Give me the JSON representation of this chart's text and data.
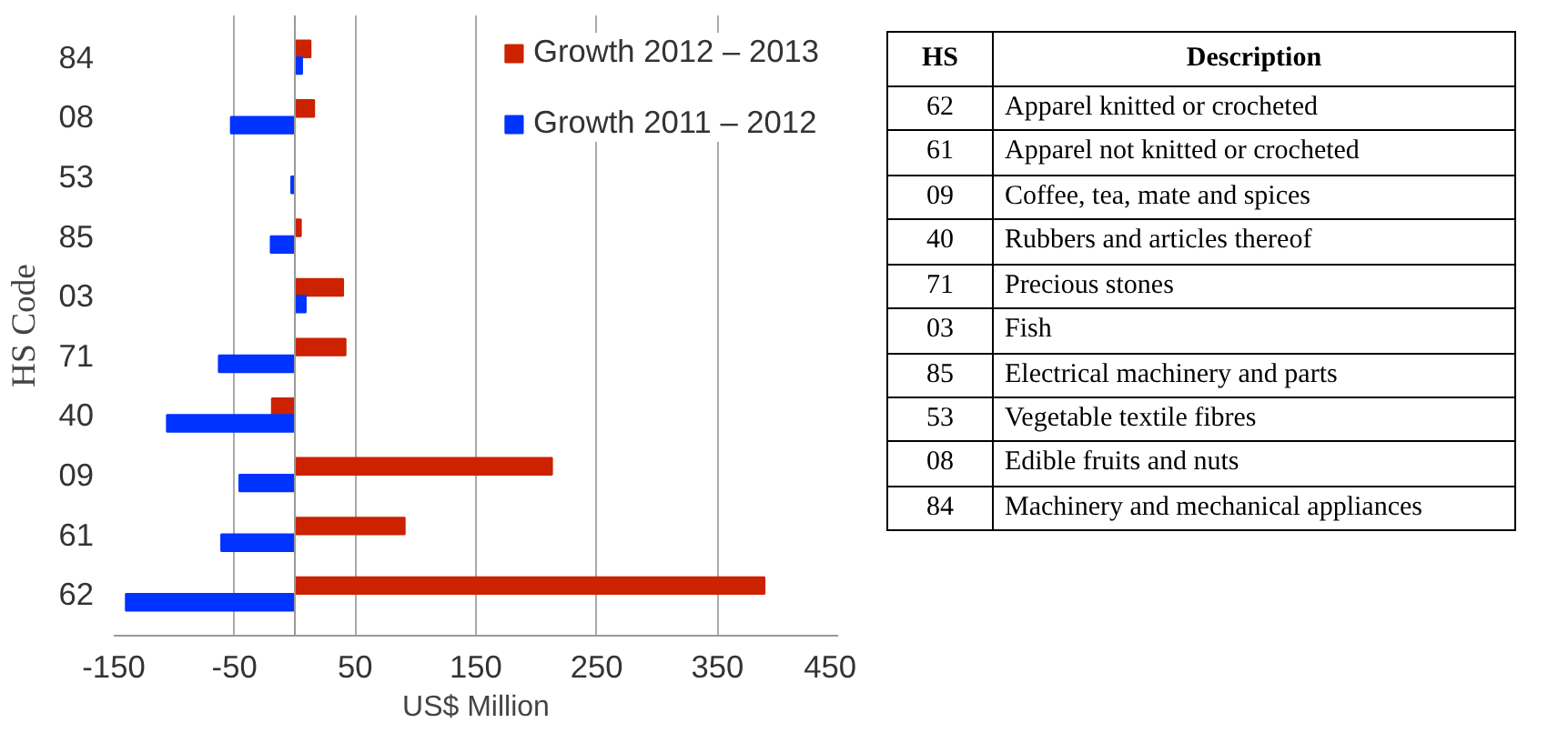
{
  "chart_data": [
    {
      "type": "bar",
      "orientation": "horizontal",
      "xlabel": "US$ Million",
      "ylabel": "HS Code",
      "categories": [
        "84",
        "08",
        "53",
        "85",
        "03",
        "71",
        "40",
        "09",
        "61",
        "62"
      ],
      "series": [
        {
          "name": "Growth 2012 – 2013",
          "color": "#cc2200",
          "values": [
            13,
            16,
            null,
            5,
            40,
            42,
            -19,
            213,
            91,
            389
          ]
        },
        {
          "name": "Growth 2011 – 2012",
          "color": "#0033ff",
          "values": [
            6,
            -53,
            -3,
            -20,
            9,
            -63,
            -106,
            -46,
            -61,
            -140
          ]
        }
      ],
      "xlim": [
        -150,
        450
      ],
      "xticks": [
        -150,
        -50,
        50,
        150,
        250,
        350,
        450
      ],
      "grid": "x",
      "legend": "top right"
    },
    {
      "type": "other",
      "annotations": [
        "HS",
        "Description",
        "62",
        "Apparel knitted or crocheted",
        "61",
        "Apparel not knitted or crocheted",
        "09",
        "Coffee, tea, mate and spices",
        "40",
        "Rubbers and articles thereof",
        "71",
        "Precious stones",
        "03",
        "Fish",
        "85",
        "Electrical machinery and parts",
        "53",
        "Vegetable textile fibres",
        "08",
        "Edible fruits and nuts",
        "84",
        "Machinery and mechanical appliances"
      ]
    }
  ]
}
